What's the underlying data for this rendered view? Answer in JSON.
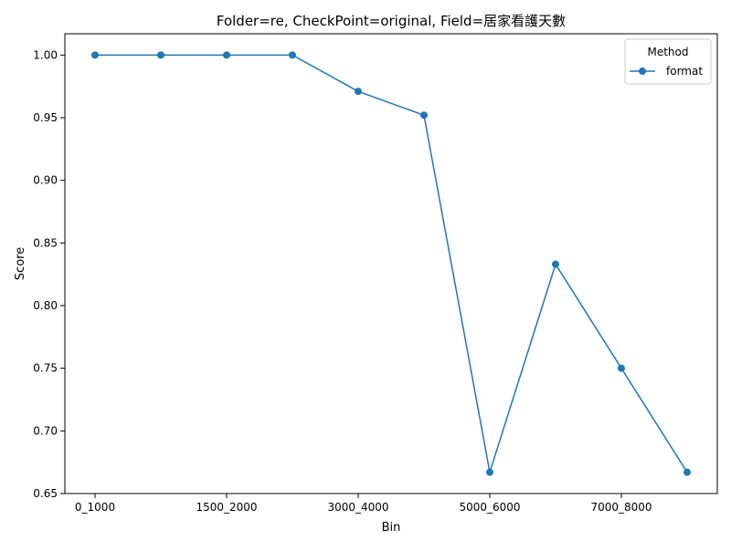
{
  "chart_data": {
    "type": "line",
    "title": "Folder=re, CheckPoint=original, Field=居家看護天數",
    "xlabel": "Bin",
    "ylabel": "Score",
    "categories": [
      "0_1000",
      "",
      "1500_2000",
      "",
      "3000_4000",
      "",
      "5000_6000",
      "",
      "7000_8000",
      ""
    ],
    "x_tick_labels": [
      "0_1000",
      "1500_2000",
      "3000_4000",
      "5000_6000",
      "7000_8000"
    ],
    "x_tick_indices": [
      0,
      2,
      4,
      6,
      8
    ],
    "ylim": [
      0.65,
      1.017
    ],
    "y_ticks": [
      0.65,
      0.7,
      0.75,
      0.8,
      0.85,
      0.9,
      0.95,
      1.0
    ],
    "y_tick_labels": [
      "0.65",
      "0.70",
      "0.75",
      "0.80",
      "0.85",
      "0.90",
      "0.95",
      "1.00"
    ],
    "grid": false,
    "legend_title": "Method",
    "legend_placement": "top-right",
    "series": [
      {
        "name": "format",
        "color": "#1f77b4",
        "values": [
          1.0,
          1.0,
          1.0,
          1.0,
          0.971,
          0.952,
          0.667,
          0.833,
          0.75,
          0.667
        ]
      }
    ]
  }
}
